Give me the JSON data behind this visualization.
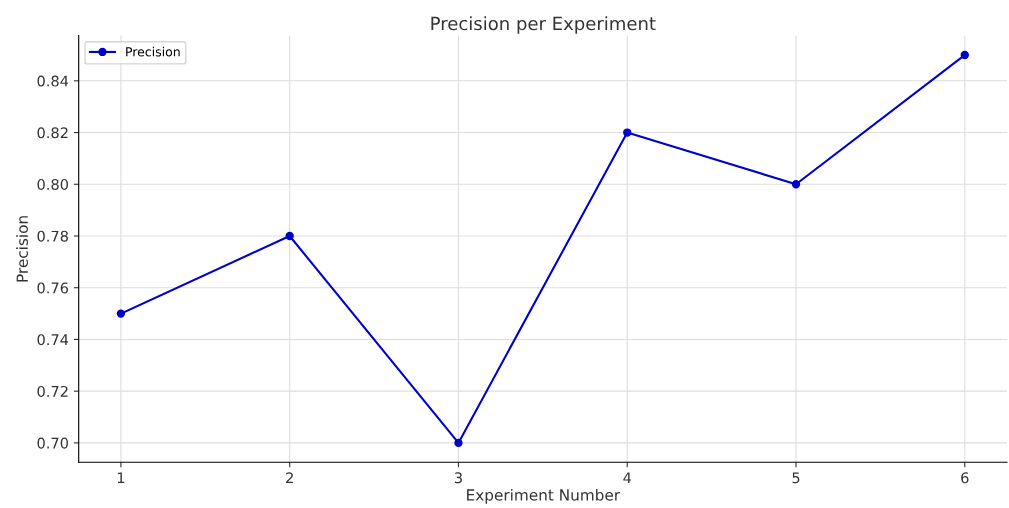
{
  "chart_data": {
    "type": "line",
    "title": "Precision per Experiment",
    "xlabel": "Experiment Number",
    "ylabel": "Precision",
    "x": [
      1,
      2,
      3,
      4,
      5,
      6
    ],
    "series": [
      {
        "name": "Precision",
        "color": "#0000cc",
        "values": [
          0.75,
          0.78,
          0.7,
          0.82,
          0.8,
          0.85
        ]
      }
    ],
    "xlim": [
      0.75,
      6.25
    ],
    "xticks": [
      1,
      2,
      3,
      4,
      5,
      6
    ],
    "ylim": [
      0.6925,
      0.8575
    ],
    "yticks": [
      {
        "value": 0.7,
        "label": "0.70"
      },
      {
        "value": 0.72,
        "label": "0.72"
      },
      {
        "value": 0.74,
        "label": "0.74"
      },
      {
        "value": 0.76,
        "label": "0.76"
      },
      {
        "value": 0.78,
        "label": "0.78"
      },
      {
        "value": 0.8,
        "label": "0.80"
      },
      {
        "value": 0.82,
        "label": "0.82"
      },
      {
        "value": 0.84,
        "label": "0.84"
      }
    ],
    "grid": true,
    "legend": "top left",
    "marker": "circle",
    "line_style": "solid"
  }
}
